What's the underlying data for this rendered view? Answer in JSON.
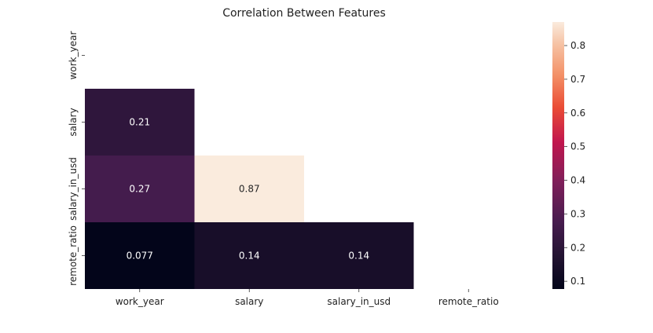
{
  "chart_data": {
    "type": "heatmap",
    "title": "Correlation Between Features",
    "x_labels": [
      "work_year",
      "salary",
      "salary_in_usd",
      "remote_ratio"
    ],
    "y_labels": [
      "work_year",
      "salary",
      "salary_in_usd",
      "remote_ratio"
    ],
    "mask": "upper-triangle-including-diagonal",
    "cells": [
      {
        "row": 1,
        "col": 0,
        "value": 0.21,
        "label": "0.21"
      },
      {
        "row": 2,
        "col": 0,
        "value": 0.27,
        "label": "0.27"
      },
      {
        "row": 2,
        "col": 1,
        "value": 0.87,
        "label": "0.87"
      },
      {
        "row": 3,
        "col": 0,
        "value": 0.077,
        "label": "0.077"
      },
      {
        "row": 3,
        "col": 1,
        "value": 0.14,
        "label": "0.14"
      },
      {
        "row": 3,
        "col": 2,
        "value": 0.14,
        "label": "0.14"
      }
    ],
    "colorbar": {
      "colormap": "rocket",
      "vmin": 0.077,
      "vmax": 0.87,
      "ticks": [
        0.1,
        0.2,
        0.3,
        0.4,
        0.5,
        0.6,
        0.7,
        0.8
      ],
      "tick_labels": [
        "0.1",
        "0.2",
        "0.3",
        "0.4",
        "0.5",
        "0.6",
        "0.7",
        "0.8"
      ],
      "placement": "right"
    }
  }
}
